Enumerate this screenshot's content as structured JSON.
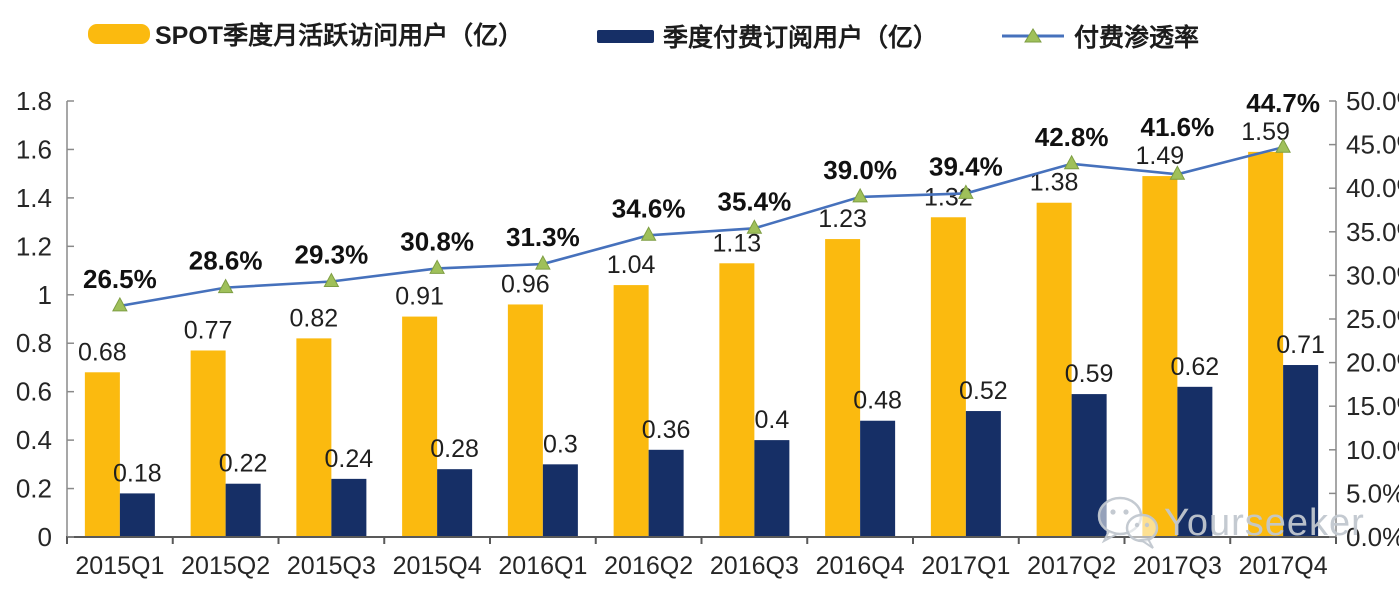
{
  "chart_data": {
    "type": "bar+line",
    "categories": [
      "2015Q1",
      "2015Q2",
      "2015Q3",
      "2015Q4",
      "2016Q1",
      "2016Q2",
      "2016Q3",
      "2016Q4",
      "2017Q1",
      "2017Q2",
      "2017Q3",
      "2017Q4"
    ],
    "series": [
      {
        "name": "SPOT季度月活跃访问用户（亿）",
        "type": "bar",
        "axis": "left",
        "color": "#FBBA0F",
        "values": [
          0.68,
          0.77,
          0.82,
          0.91,
          0.96,
          1.04,
          1.13,
          1.23,
          1.32,
          1.38,
          1.49,
          1.59
        ]
      },
      {
        "name": "季度付费订阅用户（亿）",
        "type": "bar",
        "axis": "left",
        "color": "#162F66",
        "values": [
          0.18,
          0.22,
          0.24,
          0.28,
          0.3,
          0.36,
          0.4,
          0.48,
          0.52,
          0.59,
          0.62,
          0.71
        ]
      },
      {
        "name": "付费渗透率",
        "type": "line",
        "axis": "right",
        "color": "#4671BC",
        "marker": "triangle",
        "marker_color": "#9FC05A",
        "marker_edge": "#7E9E43",
        "values": [
          26.5,
          28.6,
          29.3,
          30.8,
          31.3,
          34.6,
          35.4,
          39.0,
          39.4,
          42.8,
          41.6,
          44.7
        ],
        "labels": [
          "26.5%",
          "28.6%",
          "29.3%",
          "30.8%",
          "31.3%",
          "34.6%",
          "35.4%",
          "39.0%",
          "39.4%",
          "42.8%",
          "41.6%",
          "44.7%"
        ]
      }
    ],
    "left_axis": {
      "min": 0,
      "max": 1.8,
      "tick_values": [
        0,
        0.2,
        0.4,
        0.6,
        0.8,
        1,
        1.2,
        1.4,
        1.6,
        1.8
      ],
      "ticks": [
        "0",
        "0.2",
        "0.4",
        "0.6",
        "0.8",
        "1",
        "1.2",
        "1.4",
        "1.6",
        "1.8"
      ]
    },
    "right_axis": {
      "min": 0,
      "max": 50,
      "tick_values": [
        0,
        5,
        10,
        15,
        20,
        25,
        30,
        35,
        40,
        45,
        50
      ],
      "ticks": [
        "0.0%",
        "5.0%",
        "10.0%",
        "15.0%",
        "20.0%",
        "25.0%",
        "30.0%",
        "35.0%",
        "40.0%",
        "45.0%",
        "50.0%"
      ]
    },
    "legend_position": "top",
    "grid": false
  },
  "watermark": {
    "text": "Yourseeker",
    "icon": "wechat-icon"
  }
}
